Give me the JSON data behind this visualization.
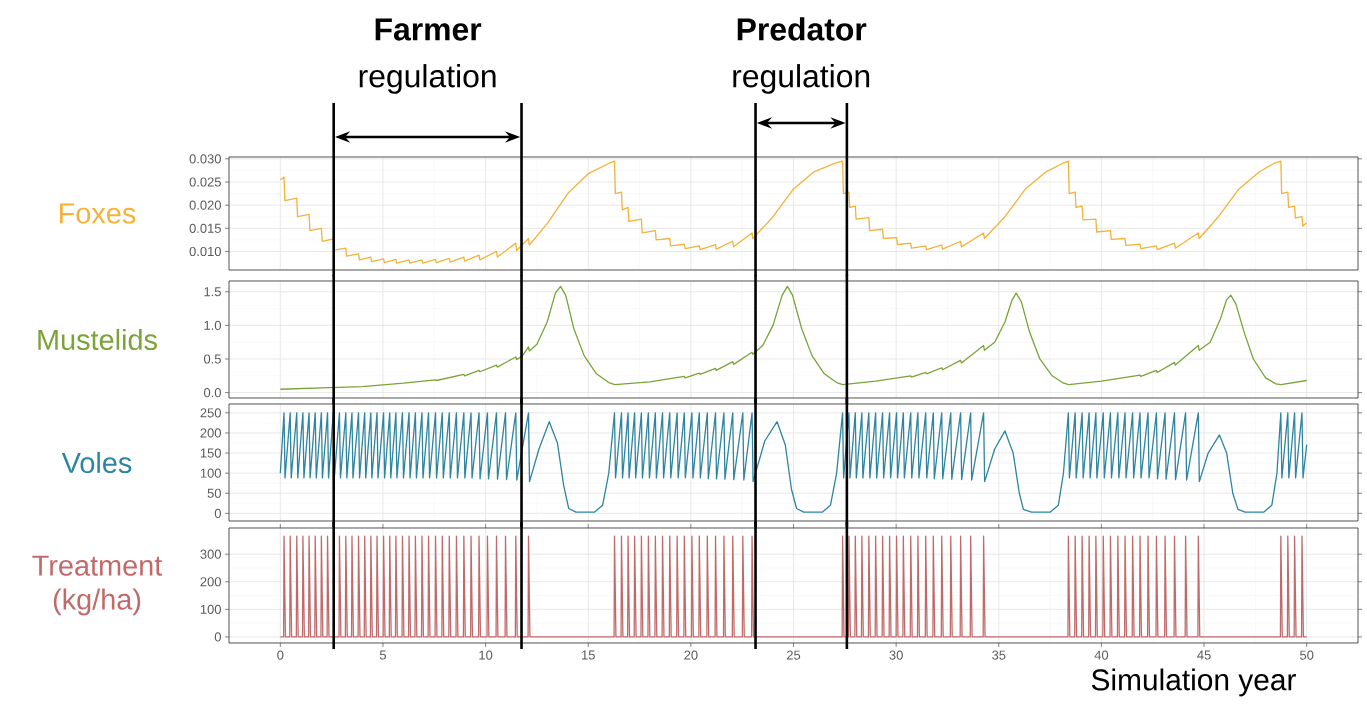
{
  "chart_data": [
    {
      "type": "line",
      "ylabel": "Foxes",
      "xlim": [
        -2.5,
        52.5
      ],
      "ylim": [
        0.006,
        0.0304
      ],
      "xticks": [
        0,
        5,
        10,
        15,
        20,
        25,
        30,
        35,
        40,
        45,
        50
      ],
      "yticks": [
        {
          "value": 0.01,
          "label": "0.010"
        },
        {
          "value": 0.015,
          "label": "0.015"
        },
        {
          "value": 0.02,
          "label": "0.020"
        },
        {
          "value": 0.025,
          "label": "0.025"
        },
        {
          "value": 0.03,
          "label": "0.030"
        }
      ],
      "tick_labels": "y",
      "grid": true,
      "ref_lines": [
        {
          "axis": "x",
          "value": 2.6
        },
        {
          "axis": "x",
          "value": 11.75
        },
        {
          "axis": "x",
          "value": 23.15
        },
        {
          "axis": "x",
          "value": 27.6
        }
      ],
      "annotations": [
        "**Farmer** regulation",
        "**Predator** regulation"
      ],
      "series": [
        {
          "color": "#f3b23a",
          "x": [
            0,
            0.18,
            0.22,
            0.8,
            0.84,
            1.4,
            1.44,
            2.0,
            2.04,
            2.58,
            2.62,
            3.19,
            3.23,
            3.81,
            3.85,
            4.41,
            4.45,
            5.03,
            5.07,
            5.63,
            5.67,
            6.27,
            6.31,
            6.9,
            6.94,
            7.56,
            7.6,
            8.23,
            8.27,
            8.94,
            8.98,
            9.68,
            9.72,
            10.53,
            10.57,
            11.47,
            11.51,
            12.09,
            12.13,
            13,
            14,
            15,
            16,
            16.28,
            16.32,
            16.62,
            16.66,
            16.94,
            16.98,
            17.59,
            17.63,
            18.27,
            18.31,
            18.97,
            19.01,
            19.68,
            19.72,
            20.41,
            20.45,
            21.2,
            21.24,
            22.04,
            22.08,
            22.98,
            23.02,
            24,
            25,
            26,
            27,
            27.39,
            27.43,
            27.7,
            27.74,
            28.01,
            28.05,
            28.67,
            28.71,
            29.34,
            29.38,
            30.02,
            30.06,
            30.71,
            30.75,
            31.44,
            31.48,
            32.22,
            32.26,
            33.14,
            33.18,
            34.26,
            34.3,
            35.3,
            36.3,
            37.3,
            38.1,
            38.39,
            38.43,
            38.72,
            38.76,
            39.06,
            39.1,
            39.73,
            39.77,
            40.44,
            40.48,
            41.15,
            41.19,
            41.88,
            41.92,
            42.68,
            42.72,
            43.56,
            43.6,
            44.72,
            44.76,
            45.7,
            46.7,
            47.7,
            48.4,
            48.74,
            48.78,
            49.08,
            49.12,
            49.41,
            49.45,
            49.77,
            49.81,
            50.0
          ],
          "values": [
            0.0255,
            0.026,
            0.021,
            0.0215,
            0.0175,
            0.018,
            0.0145,
            0.015,
            0.0122,
            0.0127,
            0.0103,
            0.0107,
            0.009,
            0.0095,
            0.0082,
            0.0088,
            0.0078,
            0.0084,
            0.0076,
            0.0083,
            0.0075,
            0.0082,
            0.0075,
            0.0082,
            0.0075,
            0.0083,
            0.0076,
            0.0085,
            0.0077,
            0.0088,
            0.0079,
            0.0092,
            0.0082,
            0.01,
            0.0088,
            0.0118,
            0.0102,
            0.0128,
            0.0114,
            0.016,
            0.0225,
            0.0268,
            0.029,
            0.0295,
            0.0225,
            0.0228,
            0.019,
            0.0195,
            0.0165,
            0.017,
            0.014,
            0.0145,
            0.0125,
            0.0128,
            0.0112,
            0.0116,
            0.0106,
            0.0112,
            0.0104,
            0.0115,
            0.0105,
            0.0122,
            0.011,
            0.014,
            0.0128,
            0.0175,
            0.0235,
            0.0272,
            0.029,
            0.0295,
            0.0225,
            0.0228,
            0.0195,
            0.0198,
            0.017,
            0.0173,
            0.0145,
            0.0148,
            0.0128,
            0.013,
            0.0115,
            0.0118,
            0.0107,
            0.0112,
            0.0104,
            0.0114,
            0.0105,
            0.0122,
            0.011,
            0.014,
            0.0128,
            0.0175,
            0.0235,
            0.0272,
            0.029,
            0.0295,
            0.0225,
            0.0228,
            0.0195,
            0.0198,
            0.0168,
            0.017,
            0.0142,
            0.0145,
            0.0126,
            0.0128,
            0.0113,
            0.0116,
            0.0106,
            0.0112,
            0.0104,
            0.0118,
            0.0107,
            0.014,
            0.0128,
            0.0175,
            0.0235,
            0.0272,
            0.029,
            0.0295,
            0.0225,
            0.0228,
            0.0195,
            0.0198,
            0.0172,
            0.0175,
            0.0155,
            0.0162
          ]
        }
      ]
    },
    {
      "type": "line",
      "ylabel": "Mustelids",
      "xlim": [
        -2.5,
        52.5
      ],
      "ylim": [
        -0.08,
        1.66
      ],
      "xticks": [
        0,
        5,
        10,
        15,
        20,
        25,
        30,
        35,
        40,
        45,
        50
      ],
      "yticks": [
        {
          "value": 0,
          "label": "0.0"
        },
        {
          "value": 0.5,
          "label": "0.5"
        },
        {
          "value": 1,
          "label": "1.0"
        },
        {
          "value": 1.5,
          "label": "1.5"
        }
      ],
      "tick_labels": "y",
      "grid": true,
      "ref_lines": [
        {
          "axis": "x",
          "value": 2.6
        },
        {
          "axis": "x",
          "value": 11.75
        },
        {
          "axis": "x",
          "value": 23.15
        },
        {
          "axis": "x",
          "value": 27.6
        }
      ],
      "series": [
        {
          "color": "#7ba339",
          "x": [
            0,
            2,
            4,
            6,
            7.56,
            7.6,
            8.94,
            8.98,
            9.68,
            9.72,
            10.53,
            10.57,
            11.47,
            11.51,
            11.8,
            12.09,
            12.13,
            12.5,
            13,
            13.4,
            13.65,
            13.9,
            14.3,
            14.8,
            15.4,
            16.0,
            16.3,
            18,
            19.68,
            19.72,
            20.41,
            20.45,
            21.2,
            21.24,
            22.04,
            22.08,
            22.98,
            23.02,
            23.5,
            24.0,
            24.45,
            24.7,
            24.95,
            25.4,
            25.9,
            26.5,
            27.1,
            27.4,
            29,
            30.71,
            30.75,
            31.44,
            31.48,
            32.22,
            32.26,
            33.14,
            33.18,
            34.26,
            34.3,
            34.8,
            35.3,
            35.65,
            35.85,
            36.1,
            36.5,
            37.0,
            37.6,
            38.1,
            38.4,
            40,
            41.88,
            41.92,
            42.68,
            42.72,
            43.56,
            43.6,
            44.72,
            44.76,
            45.3,
            45.8,
            46.1,
            46.3,
            46.55,
            46.95,
            47.4,
            48.0,
            48.5,
            48.74,
            50
          ],
          "values": [
            0.05,
            0.07,
            0.09,
            0.14,
            0.19,
            0.18,
            0.27,
            0.25,
            0.33,
            0.31,
            0.41,
            0.38,
            0.53,
            0.49,
            0.55,
            0.68,
            0.62,
            0.72,
            1.05,
            1.48,
            1.58,
            1.45,
            0.95,
            0.55,
            0.28,
            0.15,
            0.12,
            0.16,
            0.24,
            0.22,
            0.29,
            0.27,
            0.36,
            0.33,
            0.46,
            0.42,
            0.6,
            0.57,
            0.7,
            1.0,
            1.45,
            1.58,
            1.45,
            0.95,
            0.55,
            0.28,
            0.15,
            0.12,
            0.17,
            0.25,
            0.23,
            0.3,
            0.28,
            0.37,
            0.34,
            0.48,
            0.44,
            0.7,
            0.63,
            0.75,
            1.05,
            1.38,
            1.48,
            1.35,
            0.9,
            0.5,
            0.25,
            0.15,
            0.12,
            0.17,
            0.26,
            0.24,
            0.33,
            0.3,
            0.45,
            0.41,
            0.7,
            0.63,
            0.75,
            1.1,
            1.38,
            1.45,
            1.32,
            0.9,
            0.5,
            0.22,
            0.13,
            0.12,
            0.18
          ]
        }
      ]
    },
    {
      "type": "line",
      "ylabel": "Voles",
      "xlim": [
        -2.5,
        52.5
      ],
      "ylim": [
        -19,
        272
      ],
      "xticks": [
        0,
        5,
        10,
        15,
        20,
        25,
        30,
        35,
        40,
        45,
        50
      ],
      "yticks": [
        0,
        50,
        100,
        150,
        200,
        250
      ],
      "tick_labels": "y",
      "grid": true,
      "ref_lines": [
        {
          "axis": "x",
          "value": 2.6
        },
        {
          "axis": "x",
          "value": 11.75
        },
        {
          "axis": "x",
          "value": 23.15
        },
        {
          "axis": "x",
          "value": 27.6
        }
      ],
      "series": [
        {
          "color": "#2e85a0",
          "x": [
            0,
            0.18,
            0.23,
            0.48,
            0.53,
            0.8,
            0.85,
            1.1,
            1.15,
            1.4,
            1.45,
            1.7,
            1.75,
            2.0,
            2.05,
            2.3,
            2.35,
            2.58,
            2.63,
            2.88,
            2.93,
            3.19,
            3.24,
            3.49,
            3.54,
            3.81,
            3.86,
            4.11,
            4.16,
            4.41,
            4.46,
            4.71,
            4.76,
            5.03,
            5.08,
            5.33,
            5.38,
            5.63,
            5.68,
            5.95,
            6.0,
            6.27,
            6.32,
            6.58,
            6.63,
            6.9,
            6.95,
            7.22,
            7.27,
            7.56,
            7.61,
            7.89,
            7.94,
            8.23,
            8.28,
            8.58,
            8.63,
            8.94,
            8.99,
            9.29,
            9.34,
            9.68,
            9.73,
            10.09,
            10.14,
            10.53,
            10.58,
            10.97,
            11.02,
            11.47,
            11.52,
            12.09,
            12.14,
            12.6,
            13.1,
            13.5,
            13.8,
            14.05,
            14.4,
            15.3,
            15.7,
            16.0,
            16.28,
            16.33,
            16.62,
            16.67,
            16.94,
            16.99,
            17.26,
            17.31,
            17.59,
            17.64,
            17.93,
            17.98,
            18.27,
            18.32,
            18.62,
            18.67,
            18.97,
            19.02,
            19.33,
            19.38,
            19.68,
            19.73,
            20.05,
            20.1,
            20.41,
            20.46,
            20.8,
            20.85,
            21.2,
            21.25,
            21.61,
            21.66,
            22.04,
            22.09,
            22.53,
            22.58,
            22.98,
            23.03,
            23.6,
            24.2,
            24.6,
            24.9,
            25.15,
            25.5,
            26.4,
            26.8,
            27.1,
            27.39,
            27.44,
            27.7,
            27.75,
            28.01,
            28.06,
            28.33,
            28.38,
            28.67,
            28.72,
            29.0,
            29.05,
            29.34,
            29.39,
            29.68,
            29.73,
            30.02,
            30.07,
            30.35,
            30.4,
            30.71,
            30.76,
            31.06,
            31.11,
            31.44,
            31.49,
            31.81,
            31.86,
            32.22,
            32.27,
            32.66,
            32.71,
            33.14,
            33.19,
            33.63,
            33.68,
            34.26,
            34.31,
            34.8,
            35.3,
            35.7,
            36.0,
            36.2,
            36.6,
            37.5,
            37.9,
            38.15,
            38.39,
            38.44,
            38.72,
            38.77,
            39.06,
            39.11,
            39.4,
            39.45,
            39.73,
            39.78,
            40.09,
            40.14,
            40.44,
            40.49,
            40.8,
            40.85,
            41.15,
            41.2,
            41.52,
            41.57,
            41.88,
            41.93,
            42.27,
            42.32,
            42.68,
            42.73,
            43.1,
            43.15,
            43.56,
            43.61,
            44.1,
            44.15,
            44.72,
            44.77,
            45.2,
            45.75,
            46.1,
            46.4,
            46.65,
            47.0,
            47.9,
            48.3,
            48.55,
            48.74,
            48.79,
            49.08,
            49.13,
            49.41,
            49.46,
            49.77,
            49.82,
            50.0
          ],
          "values": [
            100,
            250,
            88,
            250,
            88,
            250,
            88,
            250,
            88,
            250,
            88,
            250,
            88,
            250,
            88,
            250,
            88,
            250,
            88,
            250,
            88,
            250,
            88,
            250,
            88,
            250,
            88,
            250,
            88,
            250,
            88,
            250,
            88,
            250,
            88,
            250,
            88,
            250,
            88,
            250,
            88,
            250,
            88,
            250,
            88,
            250,
            88,
            250,
            88,
            250,
            88,
            250,
            88,
            250,
            88,
            250,
            88,
            250,
            88,
            250,
            88,
            250,
            86,
            250,
            86,
            250,
            85,
            250,
            84,
            250,
            83,
            250,
            79,
            160,
            228,
            175,
            70,
            12,
            3,
            3,
            20,
            100,
            250,
            88,
            250,
            88,
            250,
            88,
            250,
            88,
            250,
            88,
            250,
            88,
            250,
            88,
            250,
            88,
            250,
            88,
            250,
            88,
            250,
            88,
            250,
            88,
            250,
            88,
            250,
            86,
            250,
            86,
            250,
            85,
            250,
            84,
            250,
            83,
            250,
            79,
            180,
            228,
            170,
            60,
            12,
            3,
            3,
            20,
            100,
            250,
            88,
            250,
            88,
            250,
            88,
            250,
            88,
            250,
            88,
            250,
            88,
            250,
            88,
            250,
            88,
            250,
            88,
            250,
            88,
            250,
            88,
            250,
            88,
            250,
            88,
            250,
            86,
            250,
            86,
            250,
            85,
            250,
            84,
            250,
            83,
            250,
            79,
            160,
            205,
            150,
            50,
            10,
            3,
            3,
            20,
            100,
            250,
            88,
            250,
            88,
            250,
            88,
            250,
            88,
            250,
            88,
            250,
            88,
            250,
            88,
            250,
            88,
            250,
            88,
            250,
            88,
            250,
            88,
            250,
            88,
            250,
            86,
            250,
            85,
            250,
            84,
            250,
            83,
            250,
            79,
            150,
            195,
            150,
            50,
            10,
            3,
            3,
            20,
            100,
            250,
            88,
            250,
            88,
            250,
            88,
            250,
            88,
            171
          ]
        }
      ]
    },
    {
      "type": "line",
      "ylabel": "Treatment (kg/ha)",
      "xlabel": "Simulation year",
      "xlim": [
        -2.5,
        52.5
      ],
      "ylim": [
        -22,
        395
      ],
      "xticks": [
        0,
        5,
        10,
        15,
        20,
        25,
        30,
        35,
        40,
        45,
        50
      ],
      "yticks": [
        0,
        100,
        200,
        300
      ],
      "grid": true,
      "ref_lines": [
        {
          "axis": "x",
          "value": 2.6
        },
        {
          "axis": "x",
          "value": 11.75
        },
        {
          "axis": "x",
          "value": 23.15
        },
        {
          "axis": "x",
          "value": 27.6
        }
      ],
      "series": [
        {
          "color": "#c26a6a",
          "x": [
            0,
            0.16,
            0.18,
            0.25,
            0.46,
            0.48,
            0.55,
            0.78,
            0.8,
            0.87,
            1.08,
            1.1,
            1.17,
            1.38,
            1.4,
            1.47,
            1.68,
            1.7,
            1.77,
            1.98,
            2.0,
            2.07,
            2.28,
            2.3,
            2.37,
            2.56,
            2.58,
            2.65,
            2.86,
            2.88,
            2.95,
            3.17,
            3.19,
            3.26,
            3.47,
            3.49,
            3.56,
            3.79,
            3.81,
            3.88,
            4.09,
            4.11,
            4.18,
            4.39,
            4.41,
            4.48,
            4.69,
            4.71,
            4.78,
            5.01,
            5.03,
            5.1,
            5.31,
            5.33,
            5.4,
            5.61,
            5.63,
            5.7,
            5.93,
            5.95,
            6.02,
            6.25,
            6.27,
            6.34,
            6.56,
            6.58,
            6.65,
            6.88,
            6.9,
            6.97,
            7.2,
            7.22,
            7.29,
            7.54,
            7.56,
            7.63,
            7.87,
            7.89,
            7.96,
            8.21,
            8.23,
            8.3,
            8.56,
            8.58,
            8.65,
            8.92,
            8.94,
            9.01,
            9.27,
            9.29,
            9.36,
            9.66,
            9.68,
            9.75,
            10.07,
            10.09,
            10.16,
            10.51,
            10.53,
            10.6,
            10.95,
            10.97,
            11.04,
            11.45,
            11.47,
            11.54,
            12.07,
            12.09,
            12.16,
            16.26,
            16.28,
            16.35,
            16.6,
            16.62,
            16.69,
            16.92,
            16.94,
            17.01,
            17.24,
            17.26,
            17.33,
            17.57,
            17.59,
            17.66,
            17.91,
            17.93,
            18.0,
            18.25,
            18.27,
            18.34,
            18.6,
            18.62,
            18.69,
            18.95,
            18.97,
            19.04,
            19.31,
            19.33,
            19.4,
            19.66,
            19.68,
            19.75,
            20.03,
            20.05,
            20.12,
            20.39,
            20.41,
            20.48,
            20.78,
            20.8,
            20.87,
            21.18,
            21.2,
            21.27,
            21.59,
            21.61,
            21.68,
            22.02,
            22.04,
            22.11,
            22.51,
            22.53,
            22.6,
            22.96,
            22.98,
            23.05,
            27.37,
            27.39,
            27.46,
            27.68,
            27.7,
            27.77,
            27.99,
            28.01,
            28.08,
            28.31,
            28.33,
            28.4,
            28.65,
            28.67,
            28.74,
            28.98,
            29.0,
            29.07,
            29.32,
            29.34,
            29.41,
            29.66,
            29.68,
            29.75,
            30.0,
            30.02,
            30.09,
            30.33,
            30.35,
            30.42,
            30.69,
            30.71,
            30.78,
            31.04,
            31.06,
            31.13,
            31.42,
            31.44,
            31.51,
            31.79,
            31.81,
            31.88,
            32.2,
            32.22,
            32.29,
            32.64,
            32.66,
            32.73,
            33.12,
            33.14,
            33.21,
            33.61,
            33.63,
            33.7,
            34.24,
            34.26,
            34.33,
            38.37,
            38.39,
            38.46,
            38.7,
            38.72,
            38.79,
            39.04,
            39.06,
            39.13,
            39.38,
            39.4,
            39.47,
            39.71,
            39.73,
            39.8,
            40.07,
            40.09,
            40.16,
            40.42,
            40.44,
            40.51,
            40.78,
            40.8,
            40.87,
            41.13,
            41.15,
            41.22,
            41.5,
            41.52,
            41.59,
            41.86,
            41.88,
            41.95,
            42.25,
            42.27,
            42.34,
            42.66,
            42.68,
            42.75,
            43.08,
            43.1,
            43.17,
            43.54,
            43.56,
            43.63,
            44.08,
            44.1,
            44.17,
            44.7,
            44.72,
            44.79,
            48.72,
            48.74,
            48.81,
            49.06,
            49.08,
            49.15,
            49.39,
            49.41,
            49.48,
            49.75,
            49.77,
            49.84,
            50.0
          ],
          "values": [
            0,
            0,
            365,
            0,
            0,
            365,
            0,
            0,
            365,
            0,
            0,
            365,
            0,
            0,
            365,
            0,
            0,
            365,
            0,
            0,
            365,
            0,
            0,
            365,
            0,
            0,
            null,
            0,
            0,
            365,
            0,
            0,
            365,
            0,
            0,
            365,
            0,
            0,
            365,
            0,
            0,
            365,
            0,
            0,
            365,
            0,
            0,
            365,
            0,
            0,
            365,
            0,
            0,
            365,
            0,
            0,
            365,
            0,
            0,
            365,
            0,
            0,
            365,
            0,
            0,
            365,
            0,
            0,
            365,
            0,
            0,
            365,
            0,
            0,
            365,
            0,
            0,
            365,
            0,
            0,
            365,
            0,
            0,
            365,
            0,
            0,
            365,
            0,
            0,
            365,
            0,
            0,
            365,
            0,
            0,
            365,
            0,
            0,
            365,
            0,
            0,
            365,
            0,
            0,
            365,
            0,
            0,
            365,
            0,
            0,
            365,
            0,
            0,
            365,
            0,
            0,
            365,
            0,
            0,
            365,
            0,
            0,
            365,
            0,
            0,
            365,
            0,
            0,
            365,
            0,
            0,
            365,
            0,
            0,
            365,
            0,
            0,
            365,
            0,
            0,
            365,
            0,
            0,
            365,
            0,
            0,
            365,
            0,
            0,
            365,
            0,
            0,
            365,
            0,
            0,
            365,
            0,
            0,
            365,
            0,
            0,
            365,
            0,
            0,
            365,
            0,
            0,
            365,
            0,
            0,
            365,
            0,
            0,
            365,
            0,
            0,
            365,
            0,
            0,
            365,
            0,
            0,
            365,
            0,
            0,
            365,
            0,
            0,
            365,
            0,
            0,
            365,
            0,
            0,
            365,
            0,
            0,
            365,
            0,
            0,
            365,
            0,
            0,
            365,
            0,
            0,
            365,
            0,
            0,
            365,
            0,
            0,
            365,
            0,
            0,
            365,
            0,
            0,
            365,
            0,
            0,
            365,
            0,
            0,
            365,
            0,
            0,
            365,
            0,
            0,
            365,
            0,
            0,
            365,
            0,
            0,
            365,
            0,
            0,
            365,
            0,
            0,
            365,
            0,
            0,
            365,
            0,
            0,
            365,
            0,
            0,
            365,
            0,
            0,
            365,
            0,
            0,
            365,
            0,
            0,
            365,
            0,
            0,
            365,
            0,
            0,
            365,
            0,
            0,
            365,
            0,
            0,
            365,
            0,
            0,
            365,
            0,
            0,
            365,
            0,
            0,
            365,
            0,
            0,
            365,
            0,
            0
          ]
        }
      ]
    }
  ]
}
